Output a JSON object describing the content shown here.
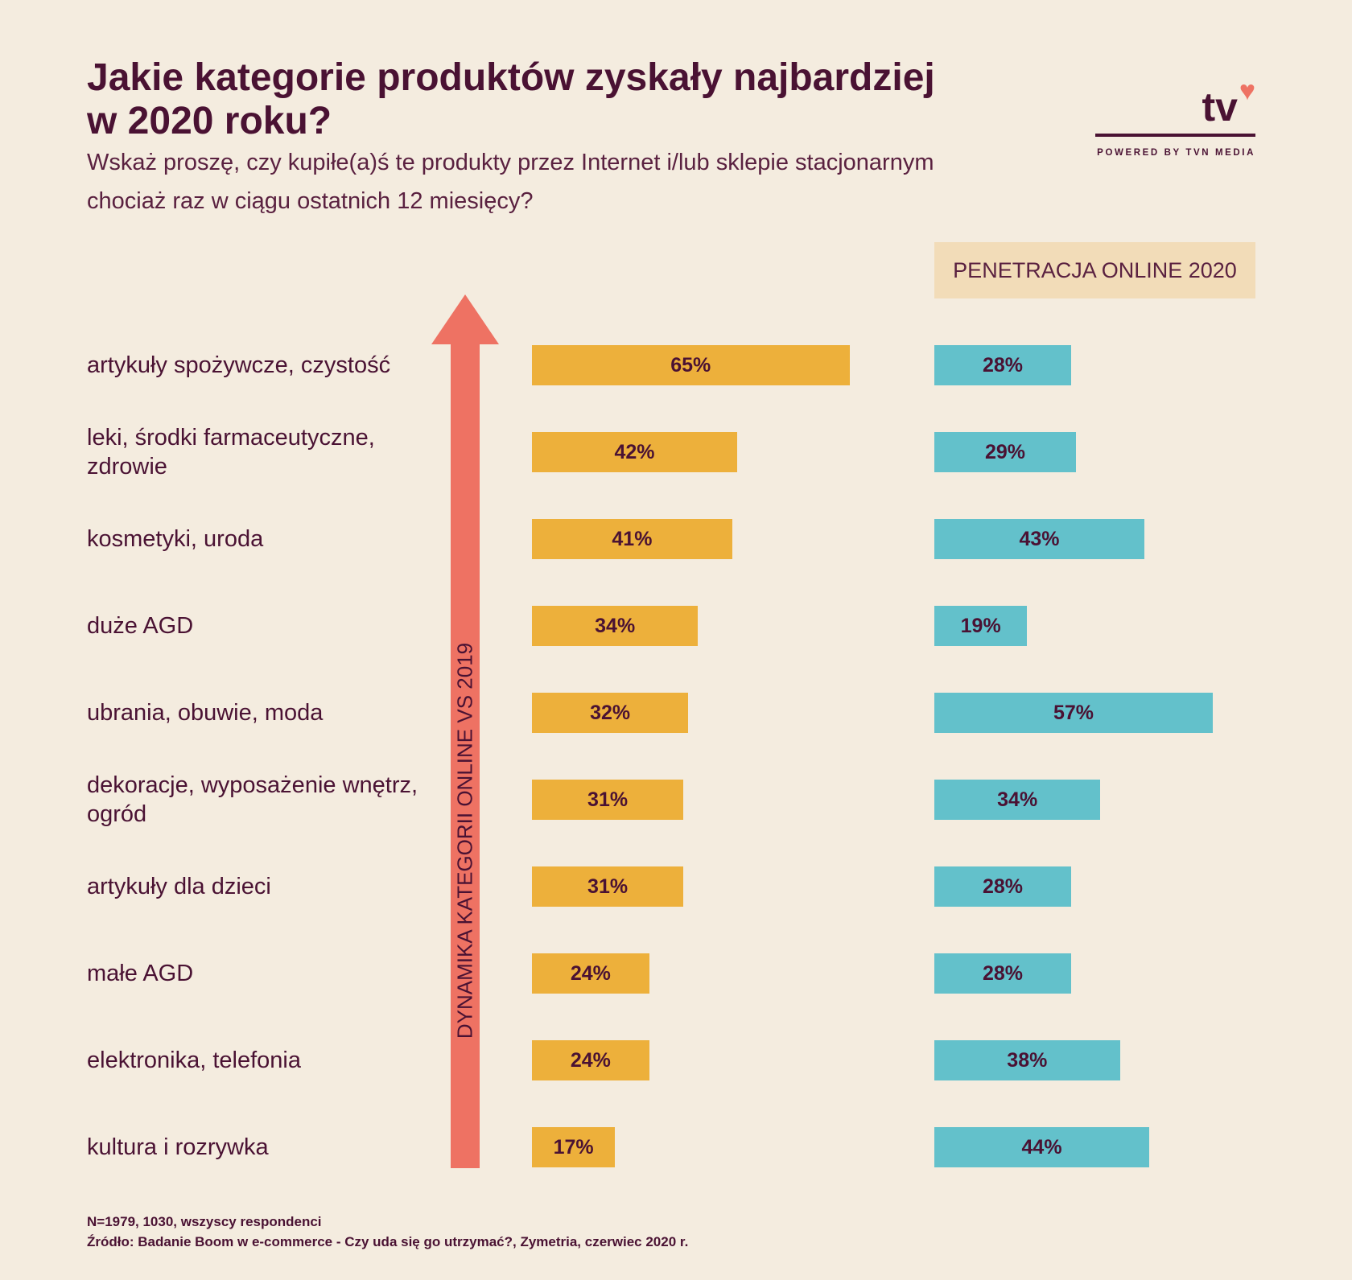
{
  "header": {
    "title": "Jakie kategorie produktów zyskały najbardziej w 2020 roku?",
    "subtitle": "Wskaż proszę, czy kupiłe(a)ś te produkty przez Internet i/lub sklepie stacjonarnym chociaż raz w ciągu ostatnich 12 miesięcy?"
  },
  "logo": {
    "mark": "tv",
    "tagline": "POWERED BY TVN MEDIA",
    "icon": "heart-icon",
    "heart_color": "#ee7263"
  },
  "colors": {
    "background": "#f4ecdf",
    "dynamics_bar": "#edb03b",
    "penetration_bar": "#63c1cb",
    "arrow": "#ee7263",
    "text": "#4a1233",
    "header_box": "#f2dcb8"
  },
  "chart_data": {
    "type": "bar",
    "orientation": "horizontal",
    "categories": [
      "artykuły spożywcze, czystość",
      "leki, środki farmaceutyczne, zdrowie",
      "kosmetyki, uroda",
      "duże AGD",
      "ubrania, obuwie, moda",
      "dekoracje, wyposażenie wnętrz, ogród",
      "artykuły dla dzieci",
      "małe AGD",
      "elektronika, telefonia",
      "kultura i rozrywka"
    ],
    "axis_label": "DYNAMIKA KATEGORII ONLINE VS 2019",
    "series": [
      {
        "values": [
          65,
          42,
          41,
          34,
          32,
          31,
          31,
          24,
          24,
          17
        ],
        "labels": [
          "65%",
          "42%",
          "41%",
          "34%",
          "32%",
          "31%",
          "31%",
          "24%",
          "24%",
          "17%"
        ]
      },
      {
        "name": "PENETRACJA ONLINE 2020",
        "values": [
          28,
          29,
          43,
          19,
          57,
          34,
          28,
          28,
          38,
          44
        ],
        "labels": [
          "28%",
          "29%",
          "43%",
          "19%",
          "57%",
          "34%",
          "28%",
          "28%",
          "38%",
          "44%"
        ]
      }
    ]
  },
  "footer": {
    "sample": "N=1979, 1030, wszyscy respondenci",
    "source": "Źródło: Badanie Boom w e-commerce - Czy uda się go utrzymać?, Zymetria, czerwiec 2020 r."
  }
}
